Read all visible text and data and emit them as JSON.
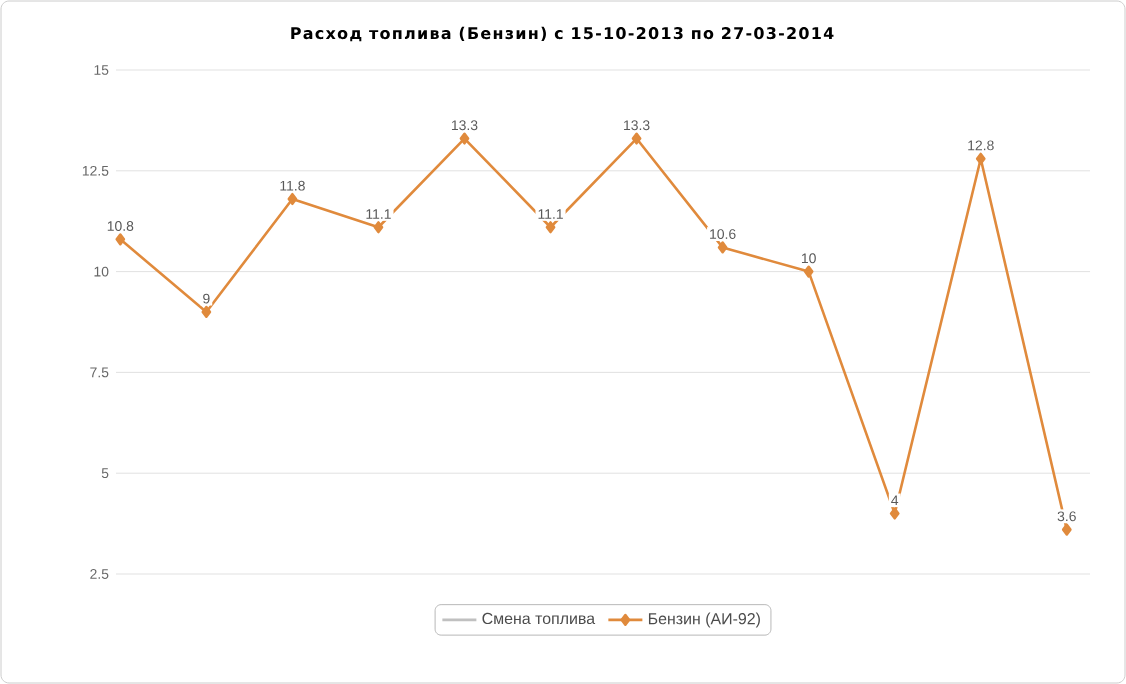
{
  "chart_data": {
    "type": "line",
    "title": "Расход топлива (Бензин) с 15-10-2013 по 27-03-2014",
    "categories": [
      null,
      null,
      null,
      null,
      null,
      null,
      null,
      null,
      null,
      null,
      null,
      null
    ],
    "series": [
      {
        "name": "Смена топлива",
        "color": "#c0c0c0",
        "marker": "none",
        "values": [
          null,
          null,
          null,
          null,
          null,
          null,
          null,
          null,
          null,
          null,
          null,
          null
        ]
      },
      {
        "name": "Бензин (АИ-92)",
        "color": "#e08a3c",
        "marker": "diamond",
        "values": [
          10.8,
          9,
          11.8,
          11.1,
          13.3,
          11.1,
          13.3,
          10.6,
          10,
          4,
          12.8,
          3.6
        ]
      }
    ],
    "ylim": [
      2.5,
      15
    ],
    "yticks": [
      2.5,
      5,
      7.5,
      10,
      12.5,
      15
    ],
    "grid": "y",
    "legend": "bottom",
    "data_labels": true,
    "tick_labels": "y"
  }
}
